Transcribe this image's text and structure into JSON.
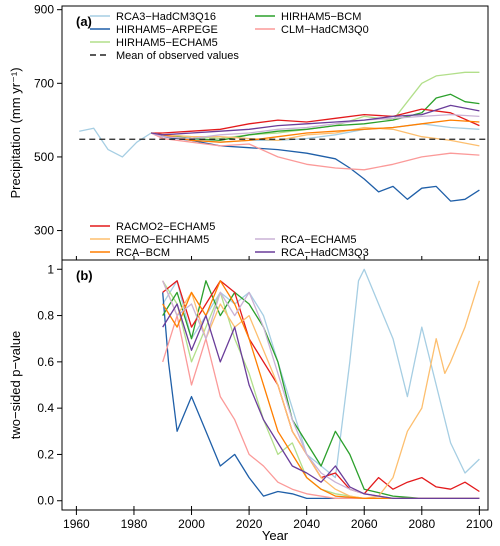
{
  "chart_data": {
    "type": "line",
    "x_axis": {
      "label": "Year",
      "range": [
        1955,
        2103
      ],
      "ticks": [
        1960,
        1980,
        2000,
        2020,
        2040,
        2060,
        2080,
        2100
      ]
    },
    "legend_top": [
      {
        "name": "RCA3−HadCM3Q16",
        "color": "#a6cee3",
        "dash": ""
      },
      {
        "name": "HIRHAM5−ARPEGE",
        "color": "#1f5fa8",
        "dash": ""
      },
      {
        "name": "HIRHAM5−ECHAM5",
        "color": "#b2df8a",
        "dash": ""
      },
      {
        "name": "Mean of observed values",
        "color": "#222222",
        "dash": "6,4"
      },
      {
        "name": "HIRHAM5−BCM",
        "color": "#2ca02c",
        "dash": ""
      },
      {
        "name": "CLM−HadCM3Q0",
        "color": "#fb9a99",
        "dash": ""
      }
    ],
    "legend_bottom": [
      {
        "name": "RACMO2−ECHAM5",
        "color": "#e31a1c"
      },
      {
        "name": "REMO−ECHHAM5",
        "color": "#fdbf6f"
      },
      {
        "name": "RCA−BCM",
        "color": "#ff7f00"
      },
      {
        "name": "RCA−ECHAM5",
        "color": "#cab2d6"
      },
      {
        "name": "RCA−HadCM3Q3",
        "color": "#6a3d9a"
      }
    ],
    "panels": [
      {
        "label": "(a)",
        "ylabel": "Precipitation (mm yr⁻¹)",
        "ylim": [
          220,
          910
        ],
        "yticks": [
          300,
          500,
          700,
          900
        ],
        "observed_mean": 548,
        "series": [
          {
            "name": "RCA3−HadCM3Q16",
            "color": "#a6cee3",
            "x": [
              1961,
              1966,
              1971,
              1976,
              1981,
              1986,
              1990,
              2000,
              2010,
              2020,
              2030,
              2040,
              2050,
              2060,
              2070,
              2080,
              2090,
              2100
            ],
            "y": [
              570,
              578,
              520,
              500,
              540,
              565,
              556,
              548,
              540,
              545,
              545,
              550,
              560,
              575,
              580,
              590,
              580,
              575
            ]
          },
          {
            "name": "HIRHAM5−ARPEGE",
            "color": "#1f5fa8",
            "x": [
              1986,
              1990,
              2000,
              2010,
              2020,
              2030,
              2040,
              2050,
              2055,
              2060,
              2065,
              2070,
              2075,
              2080,
              2085,
              2090,
              2095,
              2100
            ],
            "y": [
              565,
              555,
              545,
              530,
              525,
              520,
              510,
              495,
              470,
              440,
              405,
              420,
              385,
              415,
              420,
              380,
              385,
              410
            ]
          },
          {
            "name": "HIRHAM5−ECHAM5",
            "color": "#b2df8a",
            "x": [
              1986,
              1990,
              2000,
              2010,
              2020,
              2030,
              2040,
              2050,
              2060,
              2070,
              2075,
              2080,
              2085,
              2090,
              2095,
              2100
            ],
            "y": [
              565,
              560,
              555,
              550,
              560,
              565,
              575,
              585,
              610,
              600,
              650,
              700,
              720,
              725,
              730,
              730
            ]
          },
          {
            "name": "HIRHAM5−BCM",
            "color": "#2ca02c",
            "x": [
              1986,
              1990,
              2000,
              2010,
              2020,
              2030,
              2040,
              2050,
              2060,
              2070,
              2080,
              2085,
              2090,
              2095,
              2100
            ],
            "y": [
              565,
              560,
              550,
              545,
              560,
              570,
              575,
              585,
              590,
              600,
              620,
              660,
              670,
              650,
              645
            ]
          },
          {
            "name": "CLM−HadCM3Q0",
            "color": "#fb9a99",
            "x": [
              1986,
              1990,
              2000,
              2010,
              2020,
              2030,
              2040,
              2050,
              2060,
              2070,
              2080,
              2090,
              2100
            ],
            "y": [
              565,
              550,
              540,
              530,
              535,
              500,
              480,
              470,
              465,
              480,
              500,
              510,
              505
            ]
          },
          {
            "name": "RACMO2−ECHAM5",
            "color": "#e31a1c",
            "x": [
              1986,
              1990,
              2000,
              2010,
              2020,
              2030,
              2040,
              2050,
              2060,
              2070,
              2080,
              2090,
              2100
            ],
            "y": [
              565,
              565,
              570,
              575,
              590,
              600,
              595,
              605,
              615,
              610,
              630,
              620,
              585
            ]
          },
          {
            "name": "REMO−ECHHAM5",
            "color": "#fdbf6f",
            "x": [
              1986,
              1990,
              2000,
              2010,
              2020,
              2030,
              2040,
              2050,
              2060,
              2070,
              2080,
              2090,
              2100
            ],
            "y": [
              565,
              560,
              555,
              555,
              550,
              545,
              560,
              565,
              580,
              575,
              555,
              545,
              530
            ]
          },
          {
            "name": "RCA−BCM",
            "color": "#ff7f00",
            "x": [
              1986,
              1990,
              2000,
              2010,
              2020,
              2030,
              2040,
              2050,
              2060,
              2070,
              2080,
              2090,
              2100
            ],
            "y": [
              565,
              560,
              545,
              540,
              545,
              555,
              565,
              570,
              575,
              580,
              590,
              600,
              595
            ]
          },
          {
            "name": "RCA−ECHAM5",
            "color": "#cab2d6",
            "x": [
              1986,
              1990,
              2000,
              2010,
              2020,
              2030,
              2040,
              2050,
              2060,
              2070,
              2080,
              2090,
              2100
            ],
            "y": [
              565,
              555,
              550,
              560,
              565,
              575,
              580,
              590,
              600,
              605,
              610,
              615,
              610
            ]
          },
          {
            "name": "RCA−HadCM3Q3",
            "color": "#6a3d9a",
            "x": [
              1986,
              1990,
              2000,
              2010,
              2020,
              2030,
              2040,
              2050,
              2060,
              2070,
              2080,
              2090,
              2100
            ],
            "y": [
              565,
              560,
              565,
              570,
              575,
              585,
              590,
              595,
              600,
              610,
              615,
              640,
              625
            ]
          }
        ]
      },
      {
        "label": "(b)",
        "ylabel": "two−sided p−value",
        "ylim": [
          -0.04,
          1.04
        ],
        "yticks": [
          0.0,
          0.2,
          0.4,
          0.6,
          0.8,
          1.0
        ],
        "yticklabels": [
          "0.0",
          "0.2",
          "0.4",
          "0.6",
          "0.8",
          "1"
        ],
        "series": [
          {
            "name": "RCA3−HadCM3Q16",
            "color": "#a6cee3",
            "x": [
              1990,
              1995,
              2000,
              2005,
              2010,
              2015,
              2020,
              2025,
              2030,
              2035,
              2040,
              2045,
              2050,
              2055,
              2058,
              2060,
              2065,
              2070,
              2075,
              2080,
              2085,
              2090,
              2095,
              2100
            ],
            "y": [
              0.85,
              0.95,
              0.7,
              0.8,
              0.9,
              0.85,
              0.9,
              0.8,
              0.6,
              0.4,
              0.2,
              0.15,
              0.1,
              0.6,
              0.95,
              1.0,
              0.85,
              0.7,
              0.45,
              0.75,
              0.5,
              0.25,
              0.12,
              0.18
            ]
          },
          {
            "name": "HIRHAM5−ARPEGE",
            "color": "#1f5fa8",
            "x": [
              1990,
              1992,
              1995,
              2000,
              2005,
              2010,
              2015,
              2020,
              2025,
              2030,
              2035,
              2040,
              2045,
              2050,
              2060,
              2070,
              2080,
              2090,
              2100
            ],
            "y": [
              0.9,
              0.6,
              0.3,
              0.45,
              0.3,
              0.15,
              0.2,
              0.1,
              0.02,
              0.04,
              0.03,
              0.01,
              0.01,
              0.01,
              0.01,
              0.01,
              0.01,
              0.01,
              0.01
            ]
          },
          {
            "name": "HIRHAM5−ECHAM5",
            "color": "#b2df8a",
            "x": [
              1990,
              1995,
              2000,
              2005,
              2010,
              2015,
              2020,
              2025,
              2030,
              2035,
              2040,
              2045,
              2050,
              2060,
              2070,
              2080,
              2090,
              2100
            ],
            "y": [
              0.95,
              0.85,
              0.6,
              0.75,
              0.9,
              0.7,
              0.55,
              0.35,
              0.2,
              0.25,
              0.1,
              0.05,
              0.03,
              0.01,
              0.01,
              0.01,
              0.01,
              0.01
            ]
          },
          {
            "name": "HIRHAM5−BCM",
            "color": "#2ca02c",
            "x": [
              1990,
              1995,
              2000,
              2005,
              2010,
              2015,
              2020,
              2025,
              2030,
              2035,
              2040,
              2045,
              2050,
              2055,
              2060,
              2070,
              2080,
              2090,
              2100
            ],
            "y": [
              0.8,
              0.9,
              0.7,
              0.95,
              0.8,
              0.9,
              0.85,
              0.75,
              0.6,
              0.35,
              0.25,
              0.15,
              0.3,
              0.2,
              0.05,
              0.02,
              0.01,
              0.01,
              0.01
            ]
          },
          {
            "name": "CLM−HadCM3Q0",
            "color": "#fb9a99",
            "x": [
              1990,
              1995,
              2000,
              2005,
              2010,
              2015,
              2020,
              2025,
              2030,
              2035,
              2040,
              2050,
              2060,
              2070,
              2080,
              2090,
              2100
            ],
            "y": [
              0.6,
              0.8,
              0.5,
              0.7,
              0.45,
              0.35,
              0.2,
              0.15,
              0.08,
              0.05,
              0.03,
              0.01,
              0.01,
              0.01,
              0.01,
              0.01,
              0.01
            ]
          },
          {
            "name": "RACMO2−ECHAM5",
            "color": "#e31a1c",
            "x": [
              1990,
              1995,
              2000,
              2005,
              2010,
              2015,
              2020,
              2025,
              2030,
              2035,
              2040,
              2045,
              2050,
              2055,
              2060,
              2065,
              2070,
              2075,
              2080,
              2085,
              2090,
              2095,
              2100
            ],
            "y": [
              0.9,
              0.95,
              0.75,
              0.85,
              0.95,
              0.9,
              0.7,
              0.6,
              0.5,
              0.3,
              0.2,
              0.1,
              0.12,
              0.05,
              0.03,
              0.1,
              0.05,
              0.08,
              0.1,
              0.06,
              0.05,
              0.08,
              0.04
            ]
          },
          {
            "name": "REMO−ECHHAM5",
            "color": "#fdbf6f",
            "x": [
              1990,
              1995,
              2000,
              2005,
              2010,
              2015,
              2020,
              2025,
              2030,
              2035,
              2040,
              2045,
              2050,
              2055,
              2060,
              2065,
              2070,
              2075,
              2080,
              2085,
              2088,
              2090,
              2095,
              2100
            ],
            "y": [
              0.95,
              0.8,
              0.9,
              0.7,
              0.85,
              0.75,
              0.8,
              0.65,
              0.5,
              0.3,
              0.2,
              0.1,
              0.05,
              0.02,
              0.01,
              0.02,
              0.1,
              0.3,
              0.4,
              0.7,
              0.55,
              0.6,
              0.75,
              0.95
            ]
          },
          {
            "name": "RCA−BCM",
            "color": "#ff7f00",
            "x": [
              1990,
              1995,
              2000,
              2005,
              2010,
              2015,
              2020,
              2025,
              2030,
              2035,
              2040,
              2045,
              2050,
              2060,
              2070,
              2080,
              2090,
              2100
            ],
            "y": [
              0.85,
              0.75,
              0.9,
              0.8,
              0.95,
              0.85,
              0.7,
              0.5,
              0.3,
              0.2,
              0.1,
              0.05,
              0.02,
              0.01,
              0.01,
              0.01,
              0.01,
              0.01
            ]
          },
          {
            "name": "RCA−ECHAM5",
            "color": "#cab2d6",
            "x": [
              1990,
              1995,
              2000,
              2005,
              2010,
              2015,
              2020,
              2025,
              2030,
              2035,
              2040,
              2045,
              2050,
              2055,
              2060,
              2070,
              2080,
              2090,
              2100
            ],
            "y": [
              0.95,
              0.8,
              0.85,
              0.7,
              0.9,
              0.8,
              0.9,
              0.75,
              0.55,
              0.35,
              0.2,
              0.12,
              0.08,
              0.05,
              0.03,
              0.01,
              0.01,
              0.01,
              0.01
            ]
          },
          {
            "name": "RCA−HadCM3Q3",
            "color": "#6a3d9a",
            "x": [
              1990,
              1995,
              2000,
              2005,
              2010,
              2015,
              2020,
              2025,
              2030,
              2035,
              2040,
              2045,
              2050,
              2055,
              2060,
              2070,
              2080,
              2090,
              2100
            ],
            "y": [
              0.75,
              0.85,
              0.65,
              0.8,
              0.6,
              0.75,
              0.5,
              0.35,
              0.25,
              0.15,
              0.12,
              0.08,
              0.15,
              0.06,
              0.03,
              0.01,
              0.01,
              0.01,
              0.01
            ]
          }
        ]
      }
    ]
  }
}
